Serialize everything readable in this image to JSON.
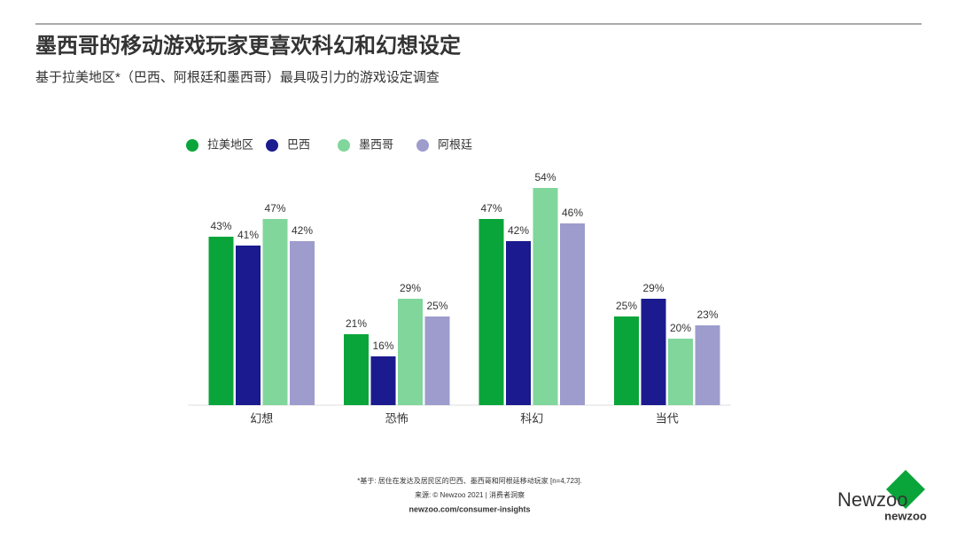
{
  "chart_data": {
    "type": "bar",
    "title": "墨西哥的移动游戏玩家更喜欢科幻和幻想设定",
    "subtitle": "基于拉美地区*（巴西、阿根廷和墨西哥）最具吸引力的游戏设定调查",
    "categories": [
      "幻想",
      "恐怖",
      "科幻",
      "当代"
    ],
    "series": [
      {
        "name": "拉美地区",
        "color": "#0aa53a",
        "values": [
          43,
          21,
          47,
          25
        ],
        "value_labels": [
          "43%",
          "21%",
          "47%",
          "25%"
        ]
      },
      {
        "name": "巴西",
        "color": "#1b1a8e",
        "values": [
          41,
          16,
          42,
          29
        ],
        "value_labels": [
          "41%",
          "16%",
          "42%",
          "29%"
        ]
      },
      {
        "name": "墨西哥",
        "color": "#80d69b",
        "values": [
          47,
          29,
          54,
          20
        ],
        "value_labels": [
          "47%",
          "29%",
          "54%",
          "20%"
        ]
      },
      {
        "name": "阿根廷",
        "color": "#9d9ccd",
        "values": [
          42,
          25,
          46,
          23
        ],
        "value_labels": [
          "42%",
          "25%",
          "46%",
          "23%"
        ]
      }
    ],
    "ylim": [
      5,
      55
    ],
    "legend": "top",
    "footnote": "*基于: 居住在发达及居民区的巴西、墨西哥和阿根廷移动玩家 [n=4,723].",
    "source": "来源: © Newzoo 2021 | 消费者洞察",
    "url": "newzoo.com/consumer-insights",
    "logo": "newzoo",
    "watermark": "Newzoo"
  }
}
